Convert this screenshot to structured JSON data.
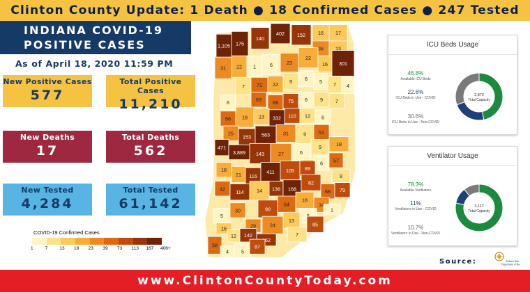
{
  "banner": "Clinton County Update: 1 Death ● 18 Confirmed Cases ● 247 Tested",
  "title": {
    "line1": "INDIANA COVID-19",
    "line2": "POSITIVE CASES"
  },
  "as_of": "As of April 18, 2020 11:59 PM",
  "stats": {
    "new_positive": {
      "label": "New Positive Cases",
      "value": "577"
    },
    "total_positive": {
      "label": "Total Positive Cases",
      "value": "11,210"
    },
    "new_deaths": {
      "label": "New Deaths",
      "value": "17"
    },
    "total_deaths": {
      "label": "Total Deaths",
      "value": "562"
    },
    "new_tested": {
      "label": "New Tested",
      "value": "4,284"
    },
    "total_tested": {
      "label": "Total Tested",
      "value": "61,142"
    }
  },
  "legend": {
    "title": "COVID-19 Confirmed Cases",
    "ticks": [
      "1",
      "7",
      "13",
      "18",
      "23",
      "39",
      "73",
      "113",
      "167",
      "406+"
    ],
    "colors": [
      "#fff5c4",
      "#fde28a",
      "#fcc95a",
      "#f8ad3a",
      "#ee8a22",
      "#dc6a12",
      "#bd4c0d",
      "#963508",
      "#6e2306"
    ]
  },
  "colors": {
    "yellow": "#f5c242",
    "navy": "#163a66",
    "red": "#9e2840",
    "blue": "#57b4e3",
    "green": "#1b8a3e",
    "donut_navy": "#1f3f7a",
    "donut_gray": "#7a7a7a"
  },
  "county_values": [
    "1,105",
    "175",
    "140",
    "402",
    "152",
    "16",
    "17",
    "36",
    "13",
    "31",
    "22",
    "1",
    "6",
    "23",
    "22",
    "16",
    "301",
    "7",
    "71",
    "22",
    "9",
    "6",
    "5",
    "7",
    "4",
    "6",
    "63",
    "68",
    "75",
    "6",
    "9",
    "7",
    "56",
    "18",
    "13",
    "332",
    "110",
    "12",
    "6",
    "25",
    "153",
    "583",
    "31",
    "9",
    "51",
    "471",
    "3,889",
    "143",
    "27",
    "6",
    "9",
    "18",
    "22",
    "6",
    "57",
    "18",
    "21",
    "116",
    "411",
    "105",
    "89",
    "8",
    "42",
    "114",
    "14",
    "136",
    "168",
    "82",
    "68",
    "79",
    "90",
    "64",
    "18",
    "34",
    "5",
    "30",
    "29",
    "24",
    "13",
    "5",
    "1",
    "16",
    "12",
    "142",
    "162",
    "7",
    "85",
    "58",
    "4",
    "5",
    "87"
  ],
  "icu": {
    "title": "ICU Beds Usage",
    "center_value": "2,872",
    "center_label": "Total Capacity",
    "items": [
      {
        "pct": "46.8%",
        "desc": "Available ICU Beds"
      },
      {
        "pct": "22.6%",
        "desc": "ICU Beds in Use - COVID"
      },
      {
        "pct": "30.6%",
        "desc": "ICU Beds in Use - Non-COVID"
      }
    ],
    "fractions": [
      0.468,
      0.226,
      0.306
    ]
  },
  "vent": {
    "title": "Ventilator Usage",
    "center_value": "3,117",
    "center_label": "Total Capacity",
    "items": [
      {
        "pct": "78.3%",
        "desc": "Available Ventilators"
      },
      {
        "pct": "11%",
        "desc": "Ventilators in Use - COVID"
      },
      {
        "pct": "10.7%",
        "desc": "Ventilators in Use - Non-COVID"
      }
    ],
    "fractions": [
      0.783,
      0.11,
      0.107
    ]
  },
  "source": {
    "label": "Source:",
    "seal_text": "Indiana State Department of Health",
    "seal_icon": "isdh-seal-icon"
  },
  "footer": "www.ClintonCountyToday.com"
}
